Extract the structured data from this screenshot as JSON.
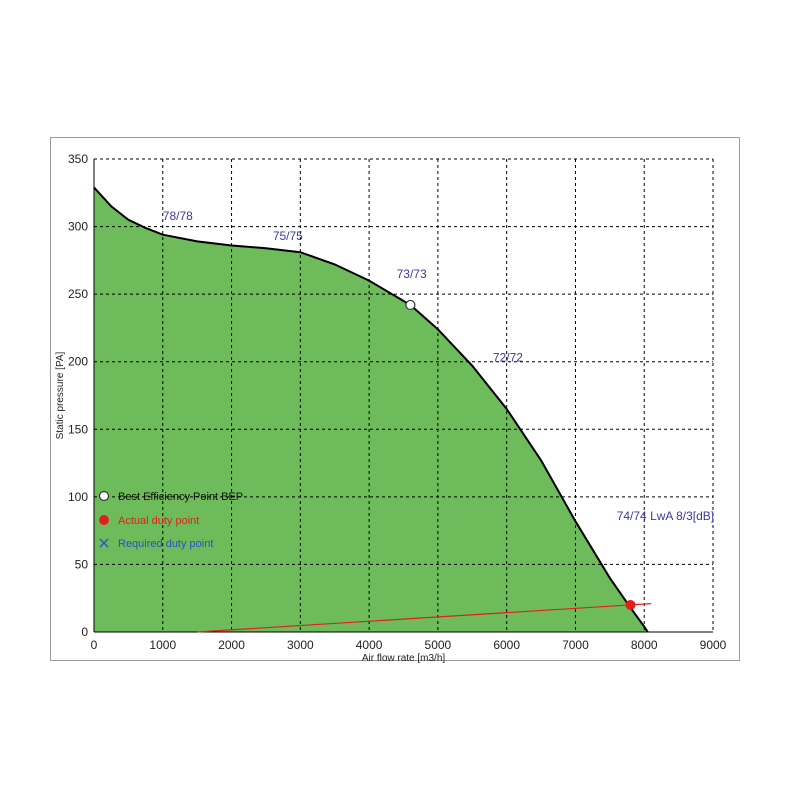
{
  "chart_data": {
    "type": "area",
    "xlabel": "Air flow rate [m3/h]",
    "ylabel": "Static pressure [PA]",
    "xlim": [
      0,
      9000
    ],
    "ylim": [
      0,
      350
    ],
    "xticks": [
      0,
      1000,
      2000,
      3000,
      4000,
      5000,
      6000,
      7000,
      8000,
      9000
    ],
    "yticks": [
      0,
      50,
      100,
      150,
      200,
      250,
      300,
      350
    ],
    "grid": true,
    "colors": {
      "fill": "#6dbb5a",
      "curve": "#000000",
      "system_line": "#e0201b",
      "labels": "#3a3aa0",
      "legend_required": "#2a4fcf"
    },
    "series": [
      {
        "x": [
          0,
          250,
          500,
          750,
          1000,
          1500,
          2000,
          2500,
          3000,
          3500,
          4000,
          4300,
          4600,
          5000,
          5500,
          6000,
          6500,
          7000,
          7500,
          7800,
          8000,
          8050
        ],
        "y": [
          329,
          315,
          305,
          299,
          294,
          289,
          286,
          284,
          281,
          272,
          260,
          251,
          242,
          224,
          197,
          165,
          127,
          82,
          40,
          18,
          4,
          0
        ]
      }
    ],
    "curve_labels": [
      {
        "text": "78/78",
        "x": 1000,
        "y": 305
      },
      {
        "text": "75/75",
        "x": 2600,
        "y": 290
      },
      {
        "text": "73/73",
        "x": 4400,
        "y": 262
      },
      {
        "text": "72/72",
        "x": 5800,
        "y": 200
      },
      {
        "text": "74/74 LwA 8/3[dB]",
        "x": 7600,
        "y": 83
      }
    ],
    "best_efficiency_point": {
      "x": 4600,
      "y": 242
    },
    "actual_duty_point": {
      "x": 7800,
      "y": 20
    },
    "system_line": {
      "x": [
        1500,
        8100
      ],
      "y": [
        0,
        21
      ]
    },
    "legend": [
      {
        "text": "Best Efficiency Point BEP",
        "marker": "open-circle"
      },
      {
        "text": "Actual duty point",
        "marker": "filled-circle"
      },
      {
        "text": "Required duty point",
        "marker": "cross"
      }
    ],
    "legend_position": "left"
  }
}
